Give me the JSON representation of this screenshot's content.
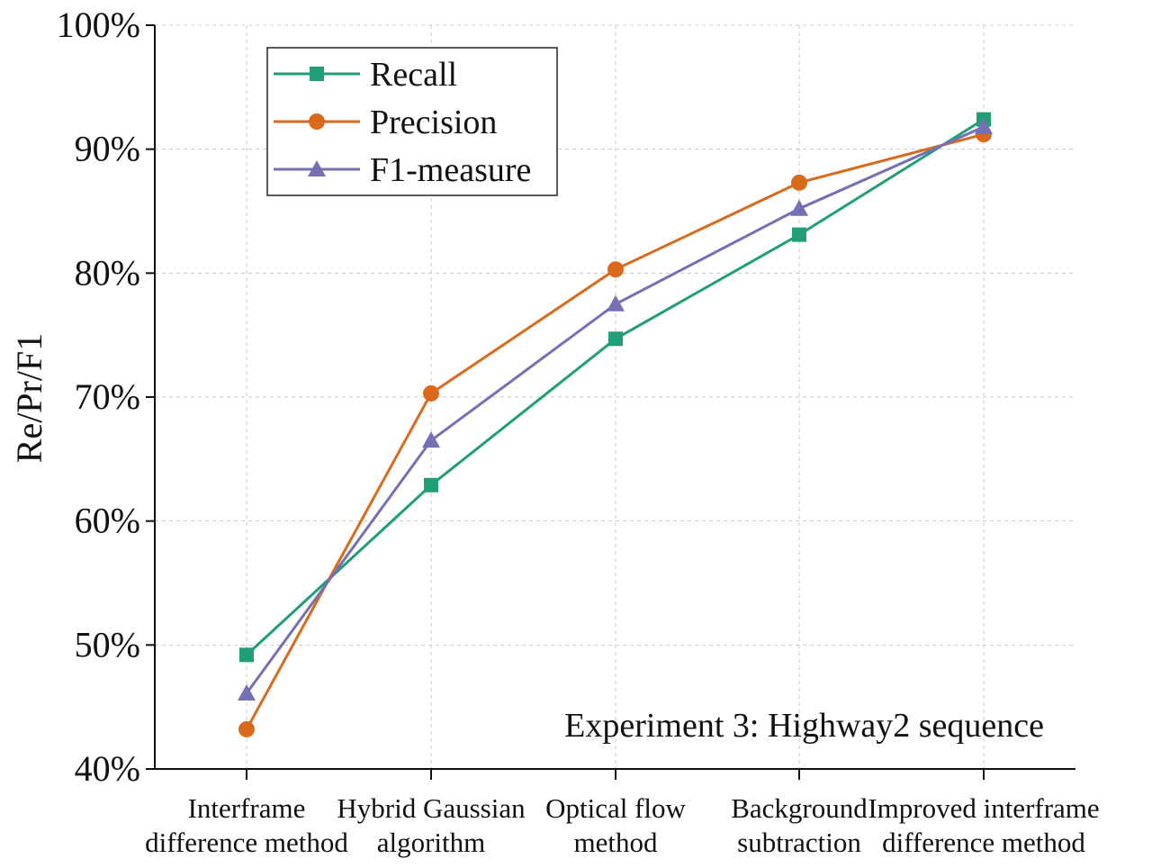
{
  "chart_data": {
    "type": "line",
    "title": "",
    "xlabel": "",
    "ylabel": "Re/Pr/F1",
    "annotation": "Experiment 3: Highway2 sequence",
    "categories": [
      [
        "Interframe",
        "difference method"
      ],
      [
        "Hybrid Gaussian",
        "algorithm"
      ],
      [
        "Optical flow",
        "method"
      ],
      [
        "Background",
        "subtraction"
      ],
      [
        "Improved interframe",
        "difference method"
      ]
    ],
    "ylim": [
      40,
      100
    ],
    "yticks": [
      40,
      50,
      60,
      70,
      80,
      90,
      100
    ],
    "ytick_labels": [
      "40%",
      "50%",
      "60%",
      "70%",
      "80%",
      "90%",
      "100%"
    ],
    "grid": true,
    "legend_position": "top-left",
    "series": [
      {
        "name": "Recall",
        "marker": "square",
        "color": "#1f9e77",
        "values": [
          49.2,
          62.9,
          74.7,
          83.1,
          92.4
        ]
      },
      {
        "name": "Precision",
        "marker": "circle",
        "color": "#d96a1c",
        "values": [
          43.2,
          70.3,
          80.3,
          87.3,
          91.2
        ]
      },
      {
        "name": "F1-measure",
        "marker": "triangle",
        "color": "#7570b3",
        "values": [
          46.1,
          66.5,
          77.5,
          85.2,
          91.8
        ]
      }
    ]
  }
}
